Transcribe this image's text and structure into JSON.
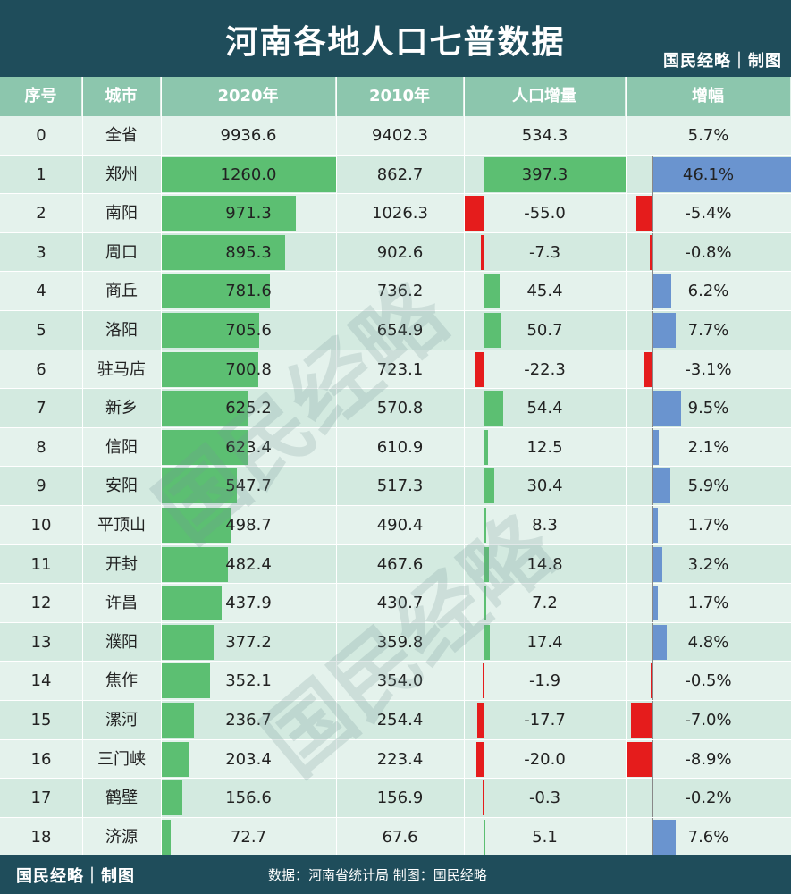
{
  "title": "河南各地人口七普数据",
  "brand": "国民经略｜制图",
  "watermark_text": "国民经略",
  "headers": [
    "序号",
    "城市",
    "2020年",
    "2010年",
    "人口增量",
    "增幅"
  ],
  "footer": {
    "brand": "国民经略｜制图",
    "source": "数据：河南省统计局 制图：国民经略"
  },
  "colors": {
    "header_bg": "#1f4d5b",
    "column_header_bg": "#8cc6ad",
    "bar_positive": "#5cbf72",
    "bar_negative": "#e51c1c",
    "bar_growth": "#6a94cf"
  },
  "rows": [
    {
      "no": "0",
      "city": "全省",
      "y2020": "9936.6",
      "y2010": "9402.3",
      "delta": "534.3",
      "growth": "5.7%"
    },
    {
      "no": "1",
      "city": "郑州",
      "y2020": "1260.0",
      "y2010": "862.7",
      "delta": "397.3",
      "growth": "46.1%"
    },
    {
      "no": "2",
      "city": "南阳",
      "y2020": "971.3",
      "y2010": "1026.3",
      "delta": "-55.0",
      "growth": "-5.4%"
    },
    {
      "no": "3",
      "city": "周口",
      "y2020": "895.3",
      "y2010": "902.6",
      "delta": "-7.3",
      "growth": "-0.8%"
    },
    {
      "no": "4",
      "city": "商丘",
      "y2020": "781.6",
      "y2010": "736.2",
      "delta": "45.4",
      "growth": "6.2%"
    },
    {
      "no": "5",
      "city": "洛阳",
      "y2020": "705.6",
      "y2010": "654.9",
      "delta": "50.7",
      "growth": "7.7%"
    },
    {
      "no": "6",
      "city": "驻马店",
      "y2020": "700.8",
      "y2010": "723.1",
      "delta": "-22.3",
      "growth": "-3.1%"
    },
    {
      "no": "7",
      "city": "新乡",
      "y2020": "625.2",
      "y2010": "570.8",
      "delta": "54.4",
      "growth": "9.5%"
    },
    {
      "no": "8",
      "city": "信阳",
      "y2020": "623.4",
      "y2010": "610.9",
      "delta": "12.5",
      "growth": "2.1%"
    },
    {
      "no": "9",
      "city": "安阳",
      "y2020": "547.7",
      "y2010": "517.3",
      "delta": "30.4",
      "growth": "5.9%"
    },
    {
      "no": "10",
      "city": "平顶山",
      "y2020": "498.7",
      "y2010": "490.4",
      "delta": "8.3",
      "growth": "1.7%"
    },
    {
      "no": "11",
      "city": "开封",
      "y2020": "482.4",
      "y2010": "467.6",
      "delta": "14.8",
      "growth": "3.2%"
    },
    {
      "no": "12",
      "city": "许昌",
      "y2020": "437.9",
      "y2010": "430.7",
      "delta": "7.2",
      "growth": "1.7%"
    },
    {
      "no": "13",
      "city": "濮阳",
      "y2020": "377.2",
      "y2010": "359.8",
      "delta": "17.4",
      "growth": "4.8%"
    },
    {
      "no": "14",
      "city": "焦作",
      "y2020": "352.1",
      "y2010": "354.0",
      "delta": "-1.9",
      "growth": "-0.5%"
    },
    {
      "no": "15",
      "city": "漯河",
      "y2020": "236.7",
      "y2010": "254.4",
      "delta": "-17.7",
      "growth": "-7.0%"
    },
    {
      "no": "16",
      "city": "三门峡",
      "y2020": "203.4",
      "y2010": "223.4",
      "delta": "-20.0",
      "growth": "-8.9%"
    },
    {
      "no": "17",
      "city": "鹤壁",
      "y2020": "156.6",
      "y2010": "156.9",
      "delta": "-0.3",
      "growth": "-0.2%"
    },
    {
      "no": "18",
      "city": "济源",
      "y2020": "72.7",
      "y2010": "67.6",
      "delta": "5.1",
      "growth": "7.6%"
    }
  ],
  "chart_data": {
    "type": "table",
    "title": "河南各地人口七普数据",
    "columns": [
      "序号",
      "城市",
      "2020年",
      "2010年",
      "人口增量",
      "增幅"
    ],
    "categories": [
      "全省",
      "郑州",
      "南阳",
      "周口",
      "商丘",
      "洛阳",
      "驻马店",
      "新乡",
      "信阳",
      "安阳",
      "平顶山",
      "开封",
      "许昌",
      "濮阳",
      "焦作",
      "漯河",
      "三门峡",
      "鹤壁",
      "济源"
    ],
    "series": [
      {
        "name": "2020年",
        "values": [
          9936.6,
          1260.0,
          971.3,
          895.3,
          781.6,
          705.6,
          700.8,
          625.2,
          623.4,
          547.7,
          498.7,
          482.4,
          437.9,
          377.2,
          352.1,
          236.7,
          203.4,
          156.6,
          72.7
        ]
      },
      {
        "name": "2010年",
        "values": [
          9402.3,
          862.7,
          1026.3,
          902.6,
          736.2,
          654.9,
          723.1,
          570.8,
          610.9,
          517.3,
          490.4,
          467.6,
          430.7,
          359.8,
          354.0,
          254.4,
          223.4,
          156.9,
          67.6
        ]
      },
      {
        "name": "人口增量",
        "values": [
          534.3,
          397.3,
          -55.0,
          -7.3,
          45.4,
          50.7,
          -22.3,
          54.4,
          12.5,
          30.4,
          8.3,
          14.8,
          7.2,
          17.4,
          -1.9,
          -17.7,
          -20.0,
          -0.3,
          5.1
        ]
      },
      {
        "name": "增幅",
        "values": [
          5.7,
          46.1,
          -5.4,
          -0.8,
          6.2,
          7.7,
          -3.1,
          9.5,
          2.1,
          5.9,
          1.7,
          3.2,
          1.7,
          4.8,
          -0.5,
          -7.0,
          -8.9,
          -0.2,
          7.6
        ]
      }
    ],
    "data_bars": {
      "2020年": "rows 1-18, green",
      "人口增量": "rows 1-18, green positive / red negative",
      "增幅": "rows 1-18, blue positive / red negative"
    }
  }
}
